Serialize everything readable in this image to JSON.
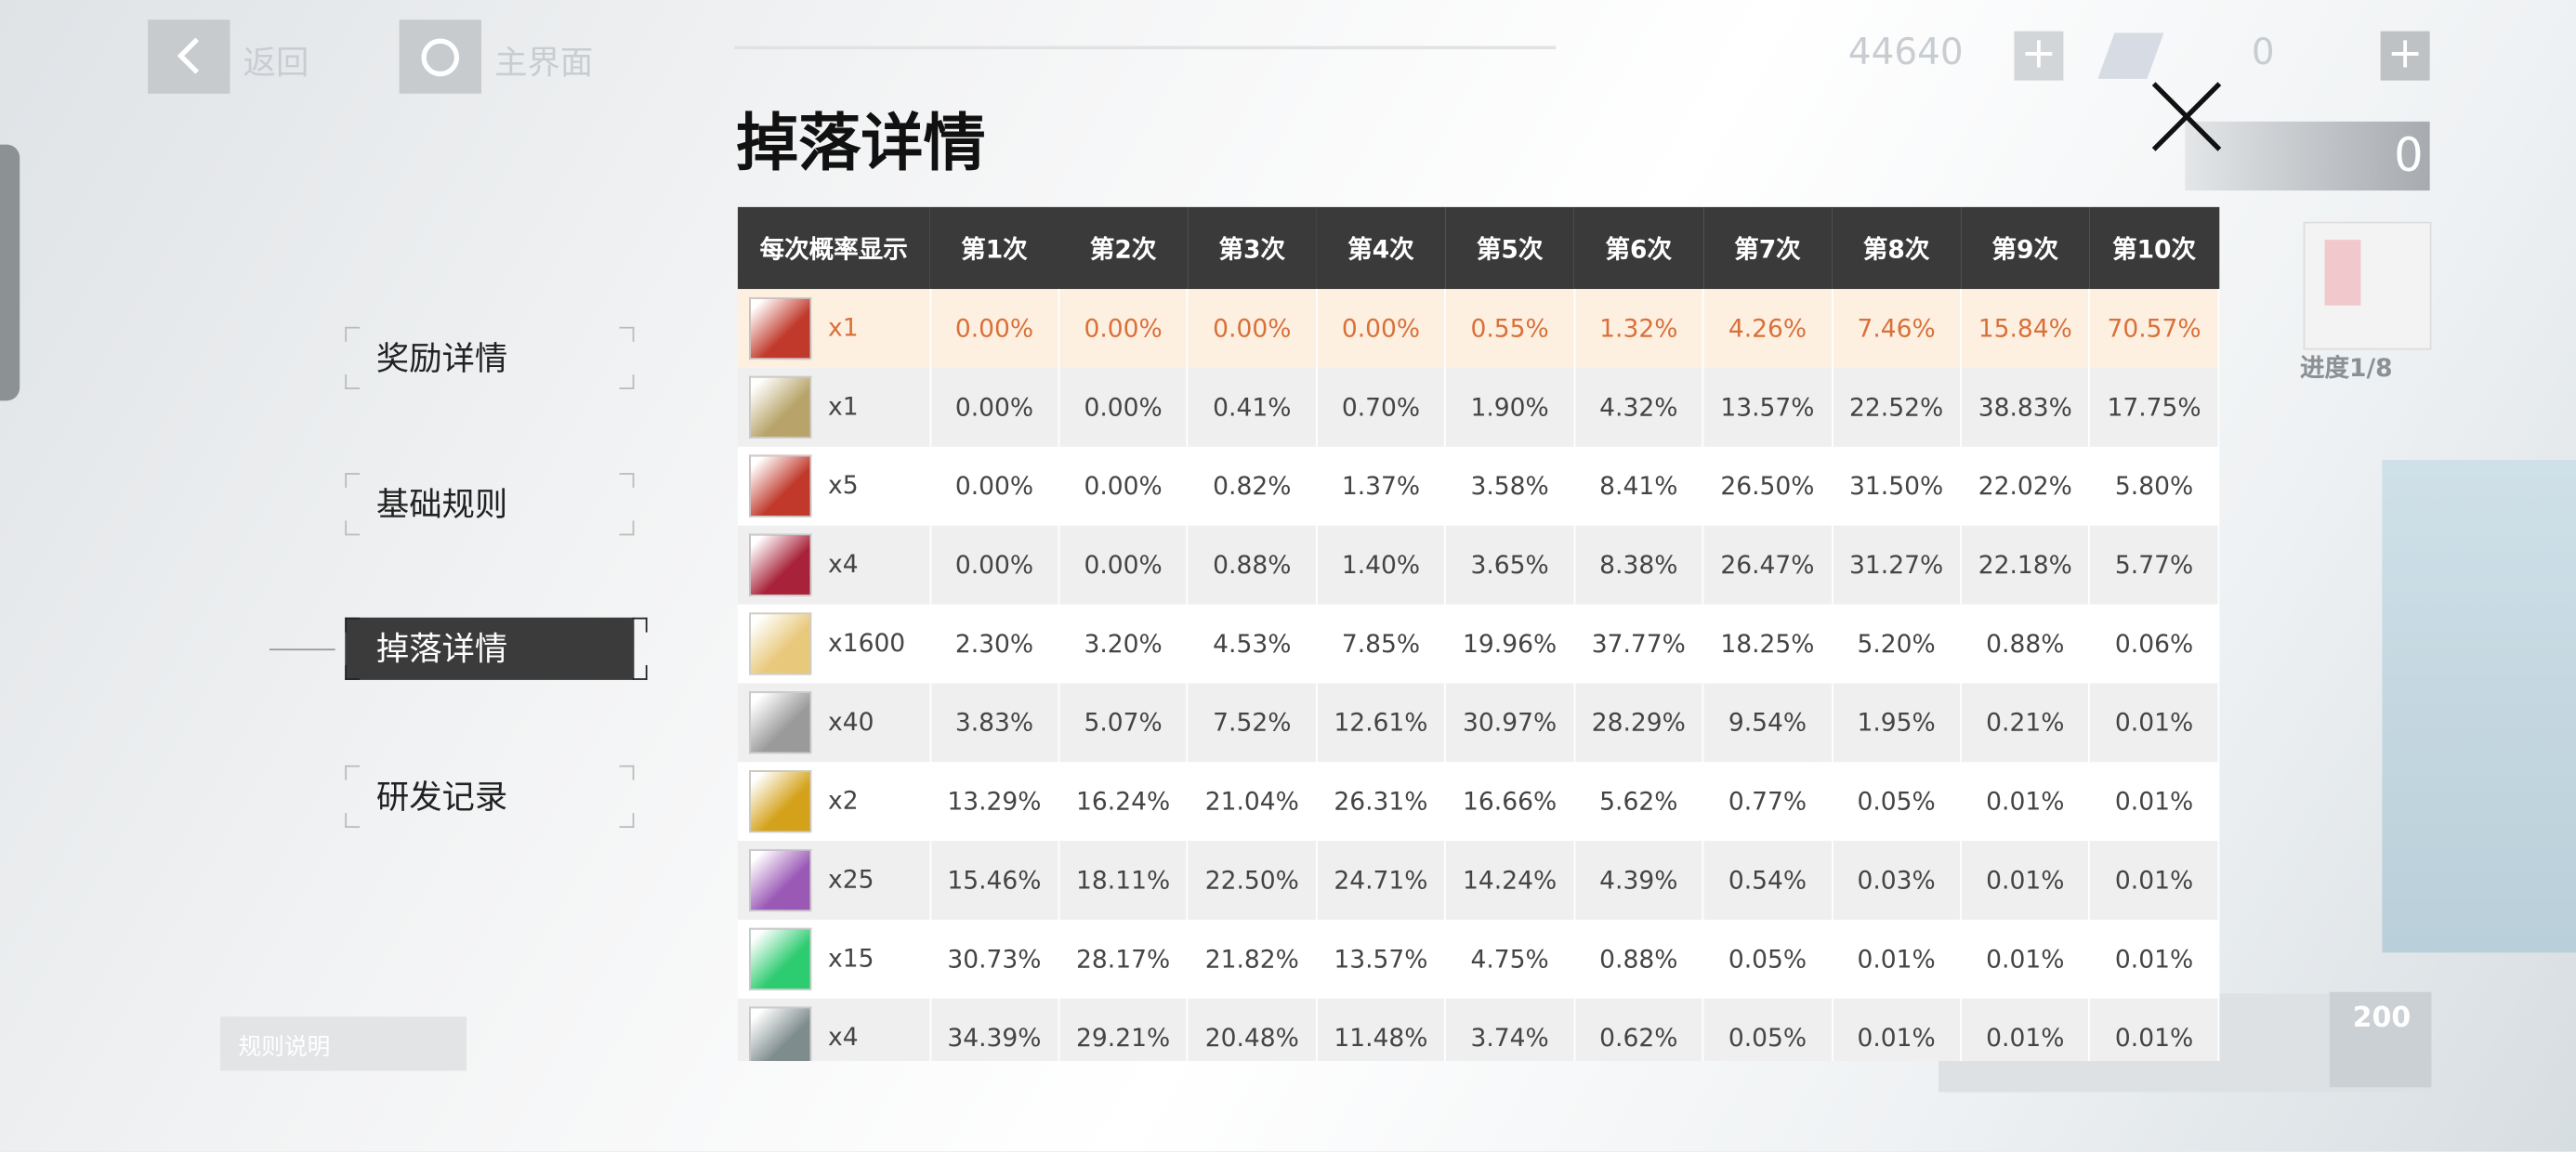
{
  "nav": {
    "back": "返回",
    "home": "主界面"
  },
  "currency": {
    "primary": "44640",
    "secondary": "0"
  },
  "side_panel": {
    "count": "0",
    "progress": "进度1/8"
  },
  "rules_button": "规则说明",
  "price": "200",
  "menu": {
    "items": [
      "奖励详情",
      "基础规则",
      "掉落详情",
      "研发记录"
    ],
    "active": 2
  },
  "dialog": {
    "title": "掉落详情",
    "table": {
      "header": [
        "每次概率显示",
        "第1次",
        "第2次",
        "第3次",
        "第4次",
        "第5次",
        "第6次",
        "第7次",
        "第8次",
        "第9次",
        "第10次"
      ],
      "highlight_row": 0,
      "rows": [
        {
          "qty": "x1",
          "probs": [
            "0.00%",
            "0.00%",
            "0.00%",
            "0.00%",
            "0.55%",
            "1.32%",
            "4.26%",
            "7.46%",
            "15.84%",
            "70.57%"
          ]
        },
        {
          "qty": "x1",
          "probs": [
            "0.00%",
            "0.00%",
            "0.41%",
            "0.70%",
            "1.90%",
            "4.32%",
            "13.57%",
            "22.52%",
            "38.83%",
            "17.75%"
          ]
        },
        {
          "qty": "x5",
          "probs": [
            "0.00%",
            "0.00%",
            "0.82%",
            "1.37%",
            "3.58%",
            "8.41%",
            "26.50%",
            "31.50%",
            "22.02%",
            "5.80%"
          ]
        },
        {
          "qty": "x4",
          "probs": [
            "0.00%",
            "0.00%",
            "0.88%",
            "1.40%",
            "3.65%",
            "8.38%",
            "26.47%",
            "31.27%",
            "22.18%",
            "5.77%"
          ]
        },
        {
          "qty": "x1600",
          "probs": [
            "2.30%",
            "3.20%",
            "4.53%",
            "7.85%",
            "19.96%",
            "37.77%",
            "18.25%",
            "5.20%",
            "0.88%",
            "0.06%"
          ]
        },
        {
          "qty": "x40",
          "probs": [
            "3.83%",
            "5.07%",
            "7.52%",
            "12.61%",
            "30.97%",
            "28.29%",
            "9.54%",
            "1.95%",
            "0.21%",
            "0.01%"
          ]
        },
        {
          "qty": "x2",
          "probs": [
            "13.29%",
            "16.24%",
            "21.04%",
            "26.31%",
            "16.66%",
            "5.62%",
            "0.77%",
            "0.05%",
            "0.01%",
            "0.01%"
          ]
        },
        {
          "qty": "x25",
          "probs": [
            "15.46%",
            "18.11%",
            "22.50%",
            "24.71%",
            "14.24%",
            "4.39%",
            "0.54%",
            "0.03%",
            "0.01%",
            "0.01%"
          ]
        },
        {
          "qty": "x15",
          "probs": [
            "30.73%",
            "28.17%",
            "21.82%",
            "13.57%",
            "4.75%",
            "0.88%",
            "0.05%",
            "0.01%",
            "0.01%",
            "0.01%"
          ]
        },
        {
          "qty": "x4",
          "probs": [
            "34.39%",
            "29.21%",
            "20.48%",
            "11.48%",
            "3.74%",
            "0.62%",
            "0.05%",
            "0.01%",
            "0.01%",
            "0.01%"
          ]
        }
      ]
    }
  }
}
